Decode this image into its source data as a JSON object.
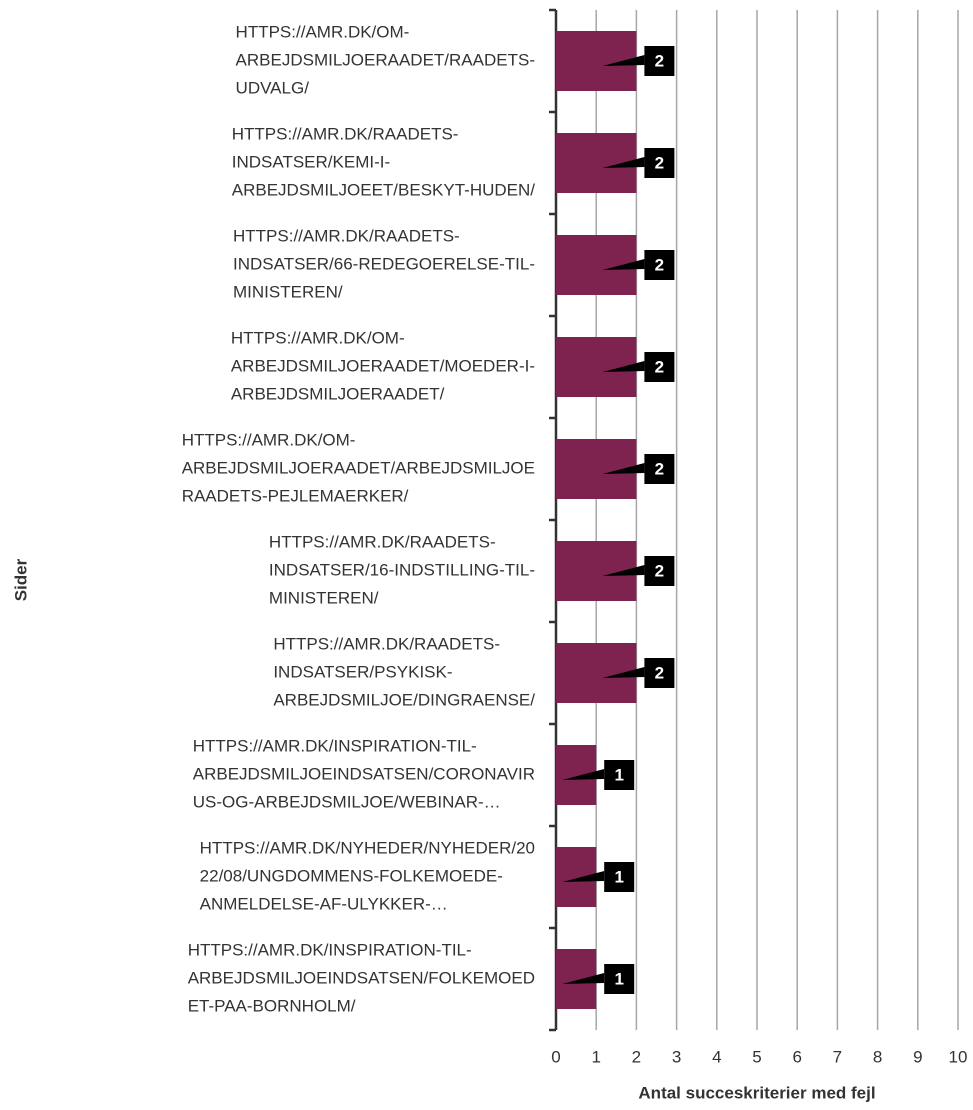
{
  "chart_data": {
    "type": "bar",
    "orientation": "horizontal",
    "xlabel": "Antal succeskriterier med fejl",
    "ylabel": "Sider",
    "categories": [
      [
        "HTTPS://AMR.DK/OM-",
        "ARBEJDSMILJOERAADET/RAADETS-",
        "UDVALG/"
      ],
      [
        "HTTPS://AMR.DK/RAADETS-",
        "INDSATSER/KEMI-I-",
        "ARBEJDSMILJOEET/BESKYT-HUDEN/"
      ],
      [
        "HTTPS://AMR.DK/RAADETS-",
        "INDSATSER/66-REDEGOERELSE-TIL-",
        "MINISTEREN/"
      ],
      [
        "HTTPS://AMR.DK/OM-",
        "ARBEJDSMILJOERAADET/MOEDER-I-",
        "ARBEJDSMILJOERAADET/"
      ],
      [
        "HTTPS://AMR.DK/OM-",
        "ARBEJDSMILJOERAADET/ARBEJDSMILJOE",
        "RAADETS-PEJLEMAERKER/"
      ],
      [
        "HTTPS://AMR.DK/RAADETS-",
        "INDSATSER/16-INDSTILLING-TIL-",
        "MINISTEREN/"
      ],
      [
        "HTTPS://AMR.DK/RAADETS-",
        "INDSATSER/PSYKISK-",
        "ARBEJDSMILJOE/DINGRAENSE/"
      ],
      [
        "HTTPS://AMR.DK/INSPIRATION-TIL-",
        "ARBEJDSMILJOEINDSATSEN/CORONAVIR",
        "US-OG-ARBEJDSMILJOE/WEBINAR-…"
      ],
      [
        "HTTPS://AMR.DK/NYHEDER/NYHEDER/20",
        "22/08/UNGDOMMENS-FOLKEMOEDE-",
        "ANMELDELSE-AF-ULYKKER-…"
      ],
      [
        "HTTPS://AMR.DK/INSPIRATION-TIL-",
        "ARBEJDSMILJOEINDSATSEN/FOLKEMOED",
        "ET-PAA-BORNHOLM/"
      ]
    ],
    "values": [
      2,
      2,
      2,
      2,
      2,
      2,
      2,
      1,
      1,
      1
    ],
    "color": "#7e2350",
    "xlim": [
      0,
      10
    ],
    "xticks": [
      0,
      1,
      2,
      3,
      4,
      5,
      6,
      7,
      8,
      9,
      10
    ],
    "grid": true
  }
}
